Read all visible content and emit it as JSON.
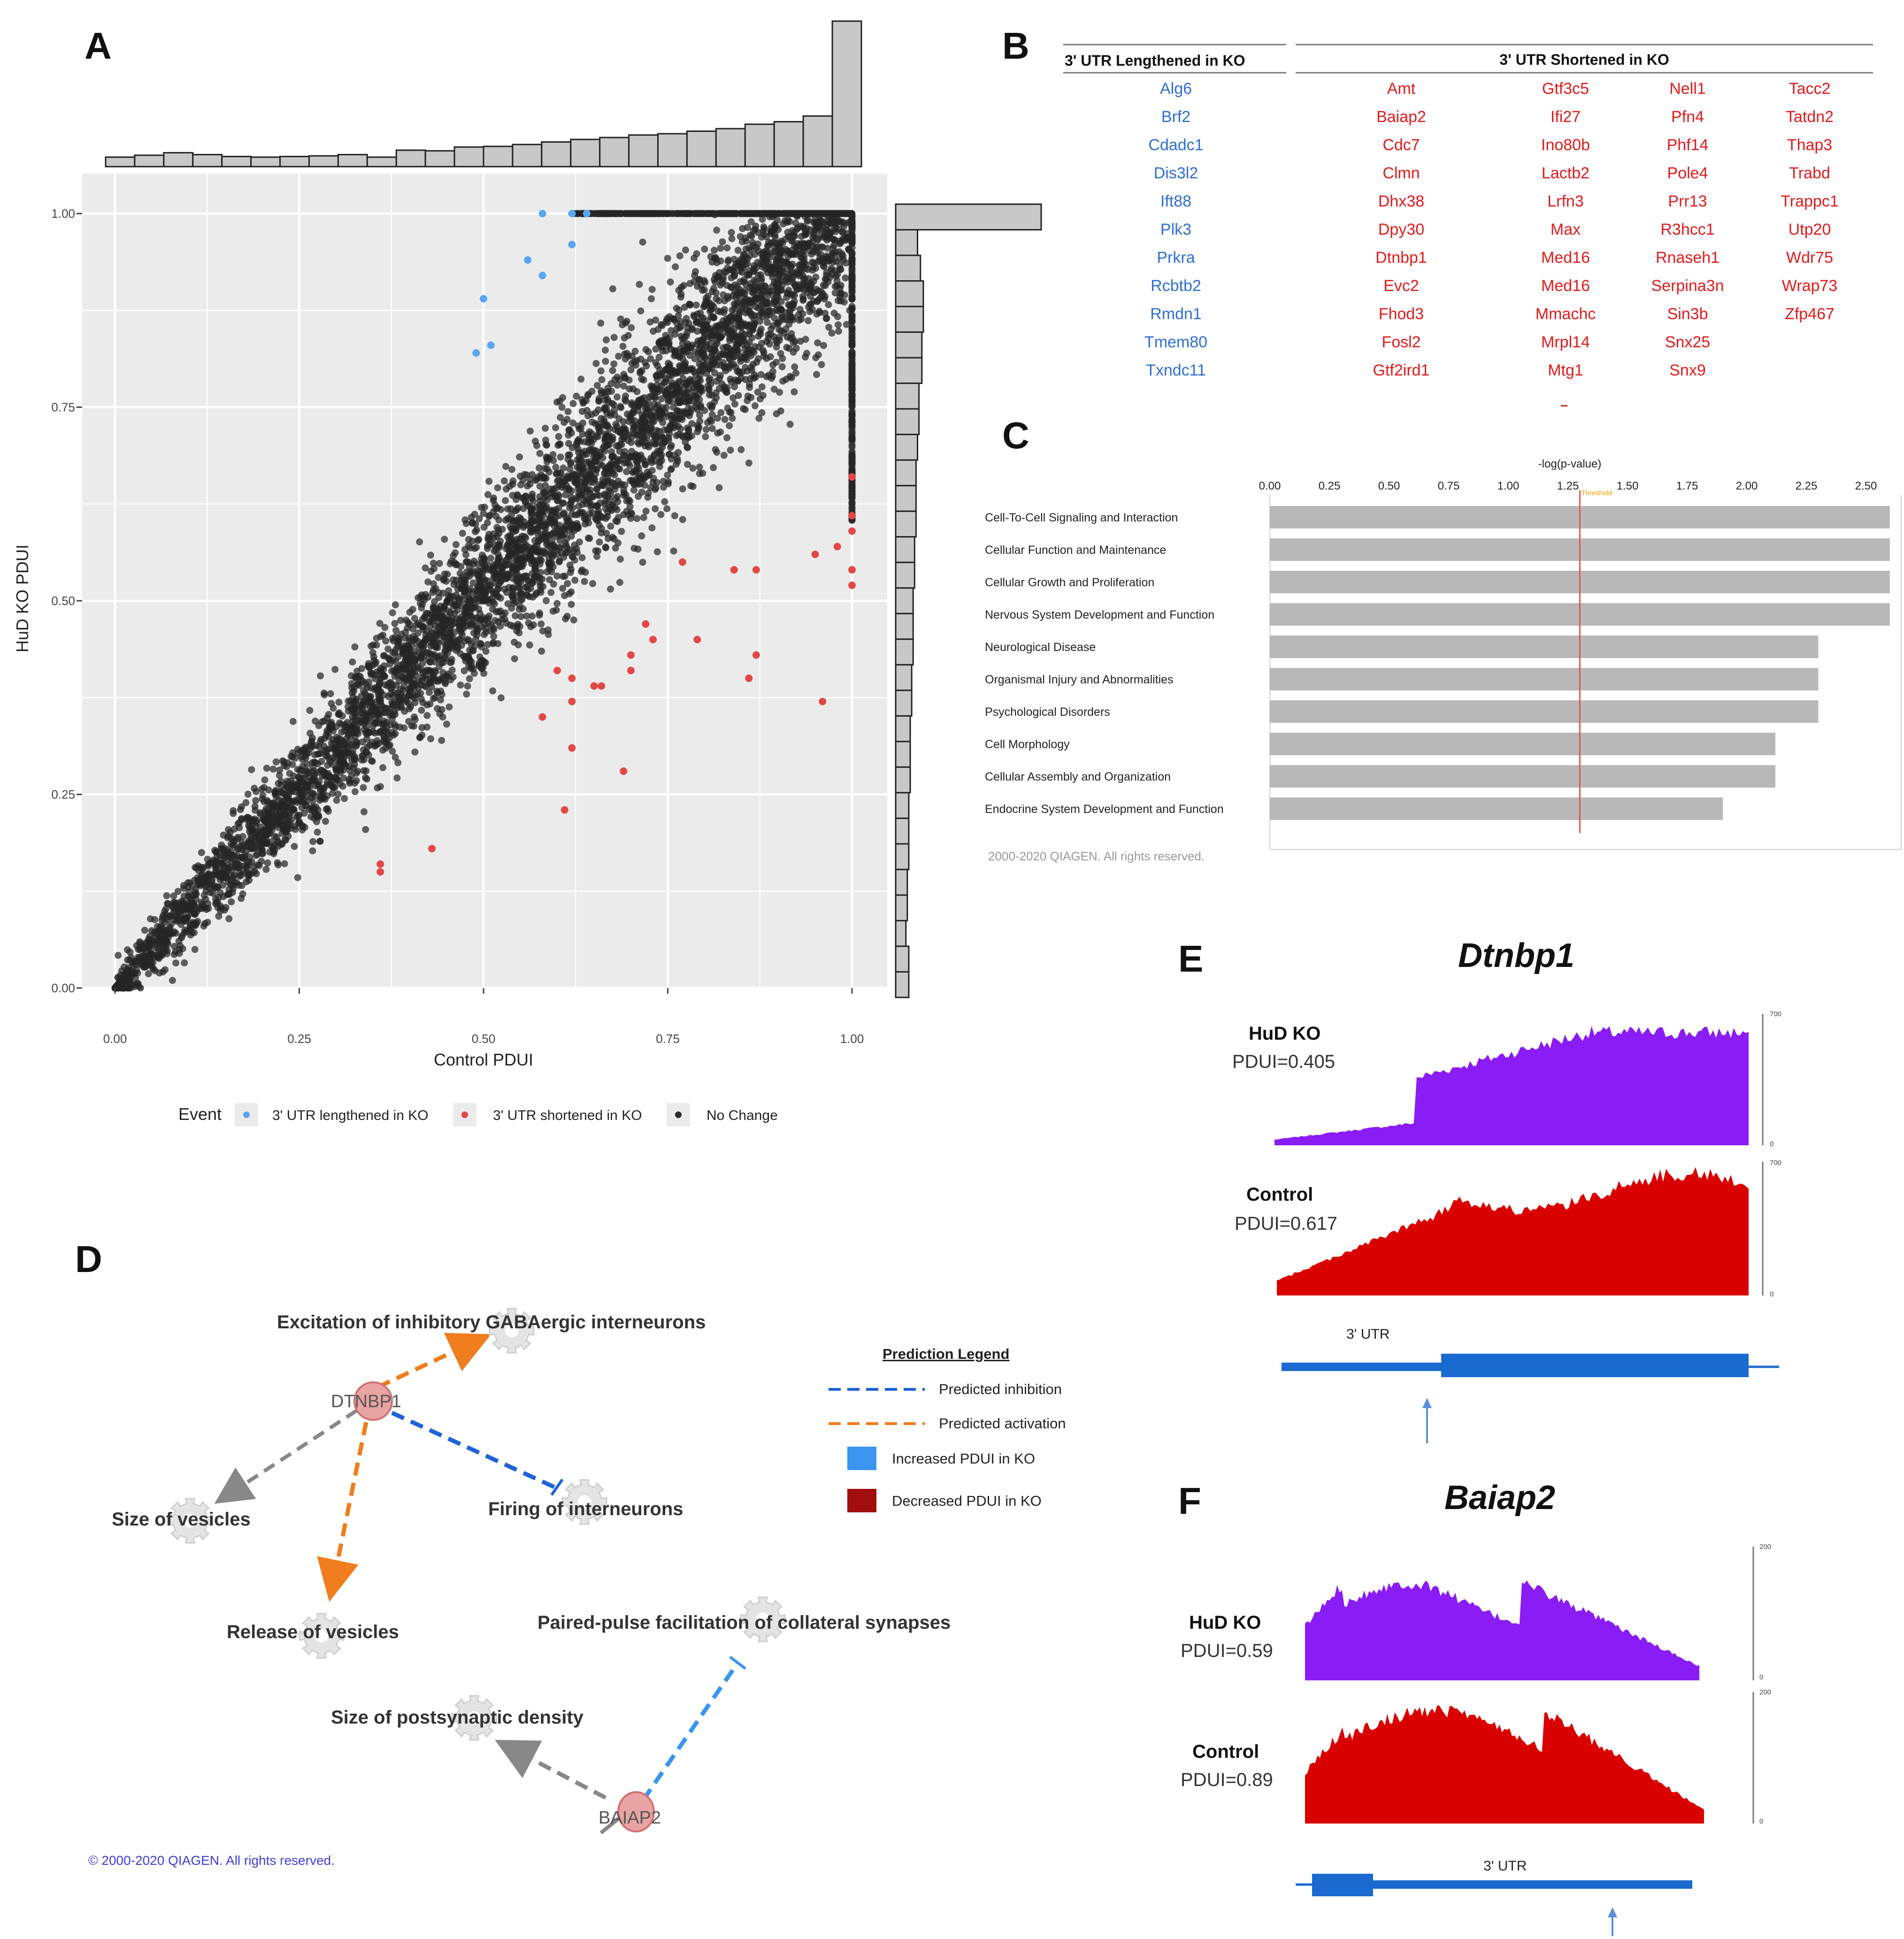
{
  "panels": {
    "A": "A",
    "B": "B",
    "C": "C",
    "D": "D",
    "E": "E",
    "F": "F"
  },
  "panel_a": {
    "chart_data": {
      "type": "scatter",
      "xlabel": "Control PDUI",
      "ylabel": "HuD KO PDUI",
      "xlim": [
        0,
        1
      ],
      "ylim": [
        0,
        1
      ],
      "x_ticks": [
        "0.00",
        "0.25",
        "0.50",
        "0.75",
        "1.00"
      ],
      "y_ticks": [
        "0.00",
        "0.25",
        "0.50",
        "0.75",
        "1.00"
      ],
      "grid": true,
      "legend_title": "Event",
      "legend_position": "bottom",
      "series": [
        {
          "name": "3' UTR lengthened in KO",
          "color": "#5aa6f0",
          "points": [
            [
              0.58,
              1.0
            ],
            [
              0.62,
              1.0
            ],
            [
              0.64,
              1.0
            ],
            [
              0.56,
              0.94
            ],
            [
              0.58,
              0.92
            ],
            [
              0.62,
              0.96
            ],
            [
              0.5,
              0.89
            ],
            [
              0.51,
              0.83
            ],
            [
              0.49,
              0.82
            ]
          ]
        },
        {
          "name": "3' UTR shortened in KO",
          "color": "#e04848",
          "points": [
            [
              1.0,
              0.66
            ],
            [
              1.0,
              0.61
            ],
            [
              1.0,
              0.59
            ],
            [
              0.98,
              0.57
            ],
            [
              0.95,
              0.56
            ],
            [
              1.0,
              0.54
            ],
            [
              1.0,
              0.52
            ],
            [
              0.87,
              0.54
            ],
            [
              0.84,
              0.54
            ],
            [
              0.77,
              0.55
            ],
            [
              0.72,
              0.47
            ],
            [
              0.79,
              0.45
            ],
            [
              0.87,
              0.43
            ],
            [
              0.86,
              0.4
            ],
            [
              0.96,
              0.37
            ],
            [
              0.73,
              0.45
            ],
            [
              0.7,
              0.43
            ],
            [
              0.6,
              0.41
            ],
            [
              0.62,
              0.4
            ],
            [
              0.65,
              0.39
            ],
            [
              0.62,
              0.37
            ],
            [
              0.58,
              0.35
            ],
            [
              0.62,
              0.31
            ],
            [
              0.69,
              0.28
            ],
            [
              0.61,
              0.23
            ],
            [
              0.43,
              0.18
            ],
            [
              0.36,
              0.16
            ],
            [
              0.36,
              0.15
            ],
            [
              0.66,
              0.39
            ],
            [
              0.7,
              0.41
            ]
          ]
        },
        {
          "name": "No Change",
          "color": "#2b2b2b",
          "points": []
        }
      ],
      "top_histogram": [
        1.5,
        1.8,
        2.2,
        1.9,
        1.6,
        1.5,
        1.6,
        1.7,
        1.9,
        1.5,
        2.6,
        2.5,
        3.1,
        3.2,
        3.5,
        3.9,
        4.3,
        4.6,
        5.0,
        5.2,
        5.6,
        6.0,
        6.7,
        7.1,
        8.0,
        23.0
      ],
      "right_histogram": [
        10,
        1.5,
        1.7,
        1.9,
        1.9,
        1.8,
        1.8,
        1.6,
        1.6,
        1.5,
        1.4,
        1.4,
        1.4,
        1.3,
        1.3,
        1.2,
        1.2,
        1.2,
        1.1,
        1.1,
        1.0,
        1.0,
        1.0,
        0.9,
        0.9,
        0.9,
        0.8,
        0.8,
        0.7,
        0.9,
        0.9
      ]
    }
  },
  "panel_b": {
    "header_left": "3' UTR Lengthened in KO",
    "header_right": "3' UTR Shortened in KO",
    "lengthened": [
      "Alg6",
      "Brf2",
      "Cdadc1",
      "Dis3l2",
      "Ift88",
      "Plk3",
      "Prkra",
      "Rcbtb2",
      "Rmdn1",
      "Tmem80",
      "Txndc11"
    ],
    "shortened_cols": [
      [
        "Amt",
        "Baiap2",
        "Cdc7",
        "Clmn",
        "Dhx38",
        "Dpy30",
        "Dtnbp1",
        "Evc2",
        "Fhod3",
        "Fosl2",
        "Gtf2ird1"
      ],
      [
        "Gtf3c5",
        "Ifi27",
        "Ino80b",
        "Lactb2",
        "Lrfn3",
        "Max",
        "Med16",
        "Med16",
        "Mmachc",
        "Mrpl14",
        "Mtg1"
      ],
      [
        "Nell1",
        "Pfn4",
        "Phf14",
        "Pole4",
        "Prr13",
        "R3hcc1",
        "Rnaseh1",
        "Serpina3n",
        "Sin3b",
        "Snx25",
        "Snx9"
      ],
      [
        "Tacc2",
        "Tatdn2",
        "Thap3",
        "Trabd",
        "Trappc1",
        "Utp20",
        "Wdr75",
        "Wrap73",
        "Zfp467"
      ]
    ]
  },
  "panel_c": {
    "chart_data": {
      "type": "bar",
      "orientation": "horizontal",
      "xlabel": "-log(p-value)",
      "threshold_label": "Threshold",
      "threshold": 1.3,
      "xlim": [
        0,
        2.6
      ],
      "x_ticks": [
        "0.00",
        "0.25",
        "0.50",
        "0.75",
        "1.00",
        "1.25",
        "1.50",
        "1.75",
        "2.00",
        "2.25",
        "2.50"
      ],
      "categories": [
        "Cell-To-Cell Signaling and Interaction",
        "Cellular Function and Maintenance",
        "Cellular Growth and Proliferation",
        "Nervous System Development and Function",
        "Neurological Disease",
        "Organismal Injury and Abnormalities",
        "Psychological Disorders",
        "Cell Morphology",
        "Cellular Assembly and Organization",
        "Endocrine System Development and Function"
      ],
      "values": [
        2.6,
        2.6,
        2.6,
        2.6,
        2.3,
        2.3,
        2.3,
        2.12,
        2.12,
        1.9
      ]
    },
    "copyright": "2000-2020 QIAGEN. All rights reserved."
  },
  "panel_d": {
    "nodes": {
      "excitation": "Excitation of inhibitory GABAergic interneurons",
      "dtnbp1": "DTNBP1",
      "size_vesicles": "Size of vesicles",
      "firing": "Firing of interneurons",
      "release": "Release of vesicles",
      "paired_pulse": "Paired-pulse facilitation of collateral synapses",
      "postsynaptic": "Size of postsynaptic density",
      "baiap2": "BAIAP2"
    },
    "legend": {
      "title": "Prediction Legend",
      "inhibition": "Predicted inhibition",
      "activation": "Predicted activation",
      "increased": "Increased PDUI in KO",
      "decreased": "Decreased PDUI in KO"
    },
    "colors": {
      "inhibition": "#1f63d6",
      "activation": "#f07d1e",
      "increased": "#3b95ef",
      "decreased": "#a20d0d",
      "neutral": "#888888"
    },
    "copyright": "© 2000-2020 QIAGEN. All rights reserved."
  },
  "panel_e": {
    "title": "Dtnbp1",
    "ko_label": "HuD KO",
    "ko_pdui": "PDUI=0.405",
    "ctrl_label": "Control",
    "ctrl_pdui": "PDUI=0.617",
    "scale_max": "700",
    "scale_min": "0",
    "utr_label": "3' UTR",
    "ko_color": "#8a1cf5",
    "ctrl_color": "#d90000"
  },
  "panel_f": {
    "title": "Baiap2",
    "ko_label": "HuD KO",
    "ko_pdui": "PDUI=0.59",
    "ctrl_label": "Control",
    "ctrl_pdui": "PDUI=0.89",
    "scale_max": "200",
    "scale_min": "0",
    "utr_label": "3' UTR",
    "ko_color": "#8a1cf5",
    "ctrl_color": "#d90000"
  }
}
